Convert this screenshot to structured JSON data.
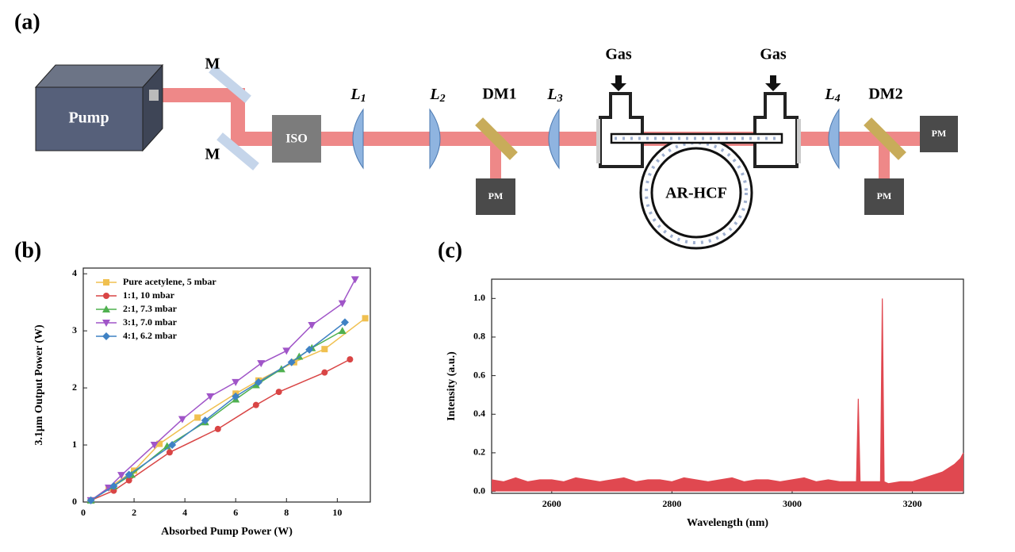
{
  "panel_labels": [
    "(a)",
    "(b)",
    "(c)"
  ],
  "diagram": {
    "pump": "Pump",
    "mirrors": [
      "M",
      "M"
    ],
    "isolator": "ISO",
    "lenses": [
      {
        "text": "L",
        "sub": "1"
      },
      {
        "text": "L",
        "sub": "2"
      },
      {
        "text": "L",
        "sub": "3"
      },
      {
        "text": "L",
        "sub": "4"
      }
    ],
    "dichroic_mirrors": [
      "DM1",
      "DM2"
    ],
    "power_meters": [
      "PM",
      "PM",
      "PM"
    ],
    "gas_inlets": [
      "Gas",
      "Gas"
    ],
    "fiber": "AR-HCF"
  },
  "chart_data": [
    {
      "type": "line",
      "x_label": "Absorbed Pump Power (W)",
      "y_label": "3.1μm Output Power (W)",
      "xlim": [
        0,
        11.3
      ],
      "xticks": [
        0,
        2,
        4,
        6,
        8,
        10
      ],
      "ylim": [
        0,
        4.1
      ],
      "yticks": [
        0,
        1,
        2,
        3,
        4
      ],
      "legend": "upper left",
      "series": [
        {
          "name": "Pure acetylene, 5 mbar",
          "color": "#f0c050",
          "marker": "square",
          "x": [
            0.3,
            1,
            2,
            3,
            4.5,
            6,
            6.9,
            8.3,
            9.5,
            11.1
          ],
          "values": [
            0.03,
            0.25,
            0.55,
            1.02,
            1.48,
            1.9,
            2.13,
            2.45,
            2.68,
            3.22
          ]
        },
        {
          "name": "1:1, 10  mbar",
          "color": "#d94545",
          "marker": "circle",
          "x": [
            0.3,
            1.2,
            1.8,
            3.4,
            5.3,
            6.8,
            7.7,
            9.5,
            10.5
          ],
          "values": [
            0.03,
            0.2,
            0.38,
            0.87,
            1.28,
            1.7,
            1.93,
            2.27,
            2.5
          ]
        },
        {
          "name": "2:1, 7.3 mbar",
          "color": "#4fb04f",
          "marker": "triangle",
          "x": [
            0.3,
            1.2,
            1.9,
            3.3,
            4.8,
            6,
            6.8,
            7.8,
            8.5,
            9,
            10.2
          ],
          "values": [
            0.03,
            0.28,
            0.48,
            0.98,
            1.4,
            1.8,
            2.05,
            2.33,
            2.55,
            2.7,
            3.0
          ]
        },
        {
          "name": "3:1, 7.0 mbar",
          "color": "#a055c8",
          "marker": "triangle-down",
          "x": [
            0.3,
            1,
            1.5,
            2.8,
            3.9,
            5,
            6,
            7,
            8,
            9,
            10.2,
            10.7
          ],
          "values": [
            0.03,
            0.25,
            0.47,
            1.0,
            1.45,
            1.85,
            2.1,
            2.43,
            2.65,
            3.1,
            3.48,
            3.9
          ]
        },
        {
          "name": "4:1, 6.2 mbar",
          "color": "#3f82c4",
          "marker": "diamond",
          "x": [
            0.3,
            1.2,
            1.8,
            3.5,
            4.8,
            6,
            6.9,
            8.2,
            8.9,
            10.3
          ],
          "values": [
            0.03,
            0.28,
            0.48,
            1.0,
            1.43,
            1.85,
            2.1,
            2.45,
            2.67,
            3.15
          ]
        }
      ]
    },
    {
      "type": "area",
      "x_label": "Wavelength (nm)",
      "y_label": "Intensity (a.u.)",
      "xlim": [
        2500,
        3285
      ],
      "xticks": [
        2600,
        2800,
        3000,
        3200
      ],
      "ylim": [
        -0.01,
        1.1
      ],
      "yticks": [
        {
          "value": 0,
          "label": "0.0"
        },
        0.2,
        0.4,
        0.6,
        0.8,
        {
          "value": 1,
          "label": "1.0"
        }
      ],
      "color": "#e04850",
      "x": [
        2500,
        2520,
        2540,
        2560,
        2580,
        2600,
        2620,
        2640,
        2660,
        2680,
        2700,
        2720,
        2740,
        2760,
        2780,
        2800,
        2820,
        2840,
        2860,
        2880,
        2900,
        2920,
        2940,
        2960,
        2980,
        3000,
        3020,
        3040,
        3060,
        3080,
        3100,
        3107,
        3110,
        3113,
        3120,
        3140,
        3147,
        3150,
        3153,
        3160,
        3180,
        3200,
        3220,
        3240,
        3250,
        3260,
        3270,
        3280,
        3285
      ],
      "values": [
        0.06,
        0.05,
        0.07,
        0.05,
        0.06,
        0.06,
        0.05,
        0.07,
        0.06,
        0.05,
        0.06,
        0.07,
        0.05,
        0.06,
        0.06,
        0.05,
        0.07,
        0.06,
        0.05,
        0.06,
        0.07,
        0.05,
        0.06,
        0.06,
        0.05,
        0.06,
        0.07,
        0.05,
        0.06,
        0.05,
        0.05,
        0.05,
        0.48,
        0.05,
        0.05,
        0.05,
        0.05,
        1.0,
        0.05,
        0.04,
        0.05,
        0.05,
        0.07,
        0.09,
        0.1,
        0.12,
        0.14,
        0.17,
        0.2
      ]
    }
  ]
}
